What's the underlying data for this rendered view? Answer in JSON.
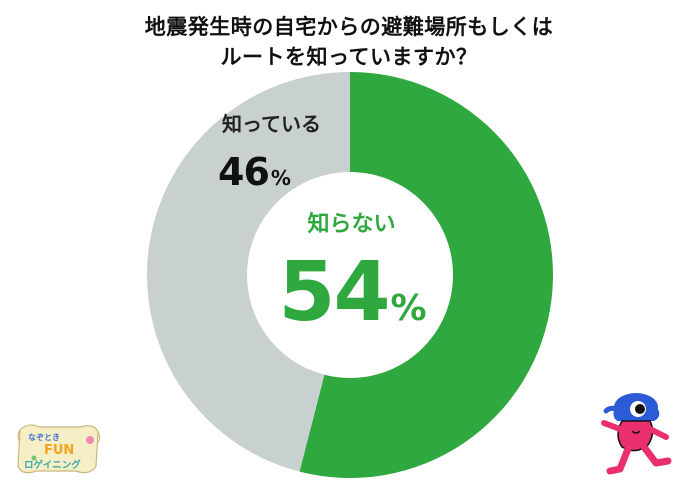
{
  "title_lines": [
    "地震発生時の自宅からの避難場所もしくは",
    "ルートを知っていますか？"
  ],
  "chart_data": {
    "type": "pie",
    "style": "donut",
    "title": "地震発生時の自宅からの避難場所もしくはルートを知っていますか？",
    "slices": [
      {
        "label": "知らない",
        "value": 54,
        "display": "54",
        "unit": "%"
      },
      {
        "label": "知っている",
        "value": 46,
        "display": "46",
        "unit": "%"
      }
    ],
    "legend": "none"
  },
  "colors": {
    "unknown": "#2fa83f",
    "known": "#c9d0d0",
    "background": "#ffffff"
  },
  "logo": {
    "top_text": "なぞとき",
    "mid_text": "FUN",
    "bottom_text": "ロゲイニング",
    "icon": "scroll-logo"
  },
  "mascot": {
    "icon": "running-mascot-character"
  }
}
